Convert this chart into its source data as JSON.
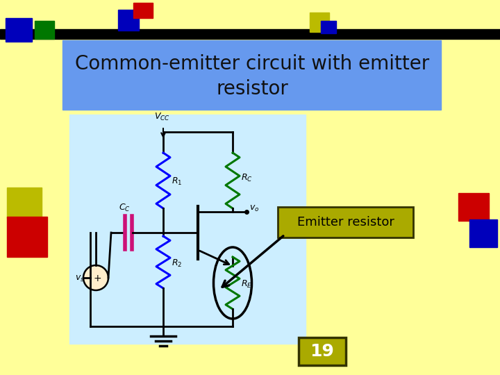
{
  "bg_color": "#FFFF99",
  "title_text": "Common-emitter circuit with emitter\nresistor",
  "title_bg": "#6699EE",
  "title_text_color": "#111111",
  "circuit_bg": "#CCEEff",
  "label_box_color": "#AAAA00",
  "label_text": "Emitter resistor",
  "page_number": "19",
  "page_num_bg": "#AAAA00",
  "r1_color": "#0000FF",
  "r2_color": "#0000FF",
  "rc_color": "#007700",
  "re_color": "#007700",
  "cap_color": "#CC1177"
}
